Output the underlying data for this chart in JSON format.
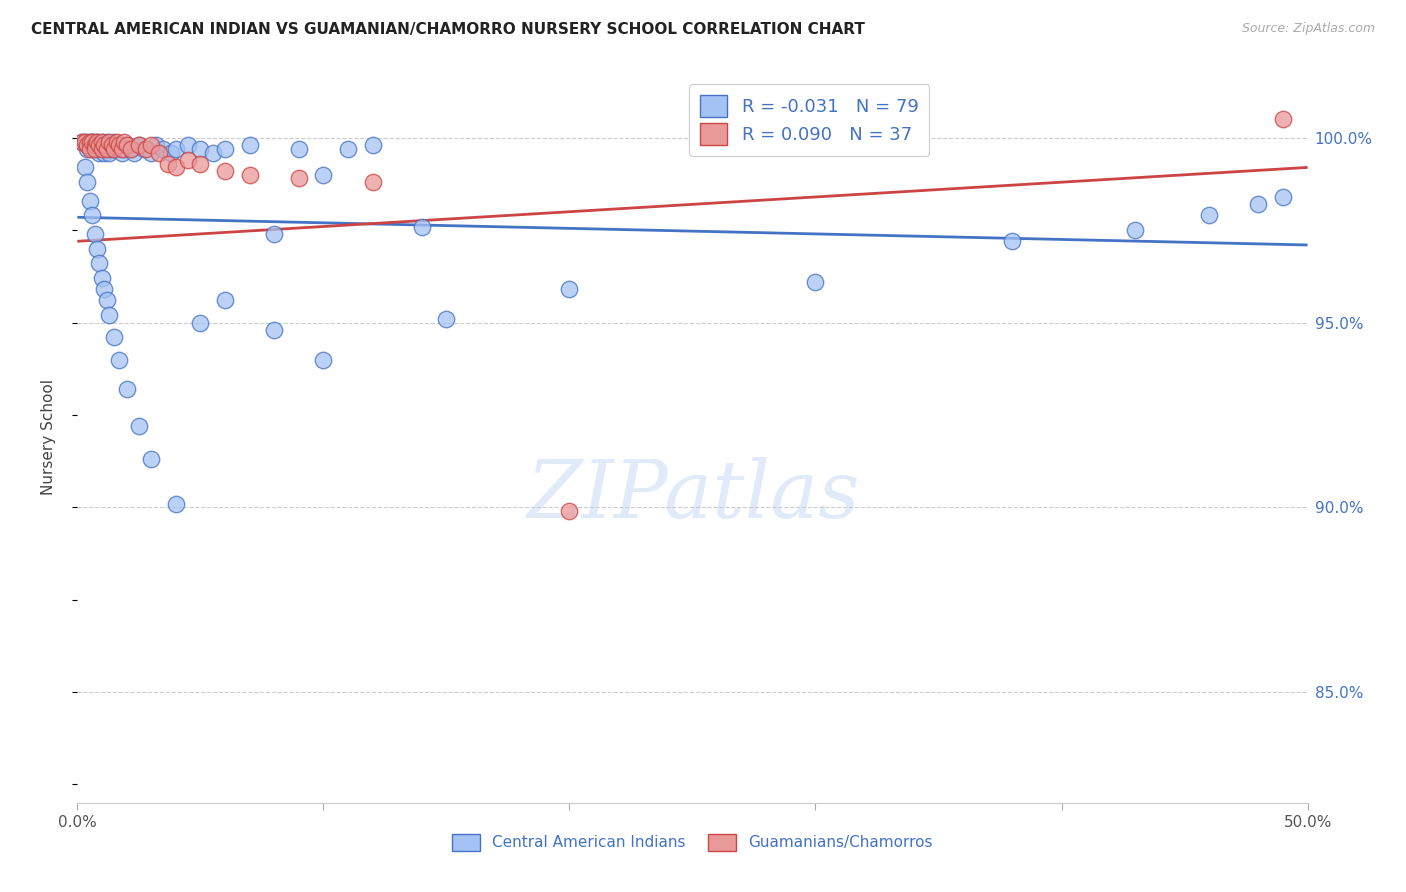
{
  "title": "CENTRAL AMERICAN INDIAN VS GUAMANIAN/CHAMORRO NURSERY SCHOOL CORRELATION CHART",
  "source": "Source: ZipAtlas.com",
  "ylabel": "Nursery School",
  "yaxis_labels": [
    "100.0%",
    "95.0%",
    "90.0%",
    "85.0%"
  ],
  "yaxis_values": [
    1.0,
    0.95,
    0.9,
    0.85
  ],
  "xlim": [
    0.0,
    0.5
  ],
  "ylim": [
    0.82,
    1.018
  ],
  "legend1_label": "R = -0.031   N = 79",
  "legend2_label": "R = 0.090   N = 37",
  "color_blue": "#a4c2f4",
  "color_pink": "#ea9999",
  "line_blue": "#4472c4",
  "line_pink": "#cc4444",
  "legend_label1": "Central American Indians",
  "legend_label2": "Guamanians/Chamorros",
  "watermark": "ZIPatlas",
  "blue_scatter_x": [
    0.002,
    0.003,
    0.004,
    0.004,
    0.005,
    0.005,
    0.006,
    0.006,
    0.007,
    0.007,
    0.008,
    0.008,
    0.009,
    0.009,
    0.01,
    0.01,
    0.011,
    0.011,
    0.012,
    0.012,
    0.013,
    0.013,
    0.014,
    0.015,
    0.015,
    0.016,
    0.017,
    0.018,
    0.019,
    0.02,
    0.022,
    0.023,
    0.025,
    0.027,
    0.03,
    0.032,
    0.035,
    0.038,
    0.04,
    0.045,
    0.05,
    0.055,
    0.06,
    0.07,
    0.08,
    0.09,
    0.1,
    0.11,
    0.12,
    0.14,
    0.003,
    0.004,
    0.005,
    0.006,
    0.007,
    0.008,
    0.009,
    0.01,
    0.011,
    0.012,
    0.013,
    0.015,
    0.017,
    0.02,
    0.025,
    0.03,
    0.04,
    0.05,
    0.06,
    0.08,
    0.1,
    0.15,
    0.2,
    0.3,
    0.38,
    0.43,
    0.46,
    0.48,
    0.49
  ],
  "blue_scatter_y": [
    0.999,
    0.999,
    0.998,
    0.997,
    0.999,
    0.998,
    0.999,
    0.997,
    0.999,
    0.998,
    0.999,
    0.997,
    0.998,
    0.996,
    0.999,
    0.997,
    0.998,
    0.996,
    0.999,
    0.997,
    0.998,
    0.996,
    0.997,
    0.999,
    0.997,
    0.998,
    0.997,
    0.996,
    0.997,
    0.998,
    0.997,
    0.996,
    0.998,
    0.997,
    0.996,
    0.998,
    0.997,
    0.996,
    0.997,
    0.998,
    0.997,
    0.996,
    0.997,
    0.998,
    0.974,
    0.997,
    0.99,
    0.997,
    0.998,
    0.976,
    0.992,
    0.988,
    0.983,
    0.979,
    0.974,
    0.97,
    0.966,
    0.962,
    0.959,
    0.956,
    0.952,
    0.946,
    0.94,
    0.932,
    0.922,
    0.913,
    0.901,
    0.95,
    0.956,
    0.948,
    0.94,
    0.951,
    0.959,
    0.961,
    0.972,
    0.975,
    0.979,
    0.982,
    0.984
  ],
  "pink_scatter_x": [
    0.002,
    0.003,
    0.004,
    0.005,
    0.005,
    0.006,
    0.007,
    0.007,
    0.008,
    0.009,
    0.01,
    0.01,
    0.011,
    0.012,
    0.013,
    0.014,
    0.015,
    0.016,
    0.017,
    0.018,
    0.019,
    0.02,
    0.022,
    0.025,
    0.028,
    0.03,
    0.033,
    0.037,
    0.04,
    0.045,
    0.05,
    0.06,
    0.07,
    0.09,
    0.12,
    0.2,
    0.49
  ],
  "pink_scatter_y": [
    0.999,
    0.999,
    0.998,
    0.999,
    0.997,
    0.999,
    0.998,
    0.997,
    0.999,
    0.998,
    0.999,
    0.997,
    0.998,
    0.997,
    0.999,
    0.998,
    0.997,
    0.999,
    0.998,
    0.997,
    0.999,
    0.998,
    0.997,
    0.998,
    0.997,
    0.998,
    0.996,
    0.993,
    0.992,
    0.994,
    0.993,
    0.991,
    0.99,
    0.989,
    0.988,
    0.899,
    1.005
  ],
  "blue_trend_x": [
    0.0,
    0.5
  ],
  "blue_trend_y": [
    0.9785,
    0.971
  ],
  "pink_trend_x": [
    0.0,
    0.5
  ],
  "pink_trend_y": [
    0.972,
    0.992
  ]
}
